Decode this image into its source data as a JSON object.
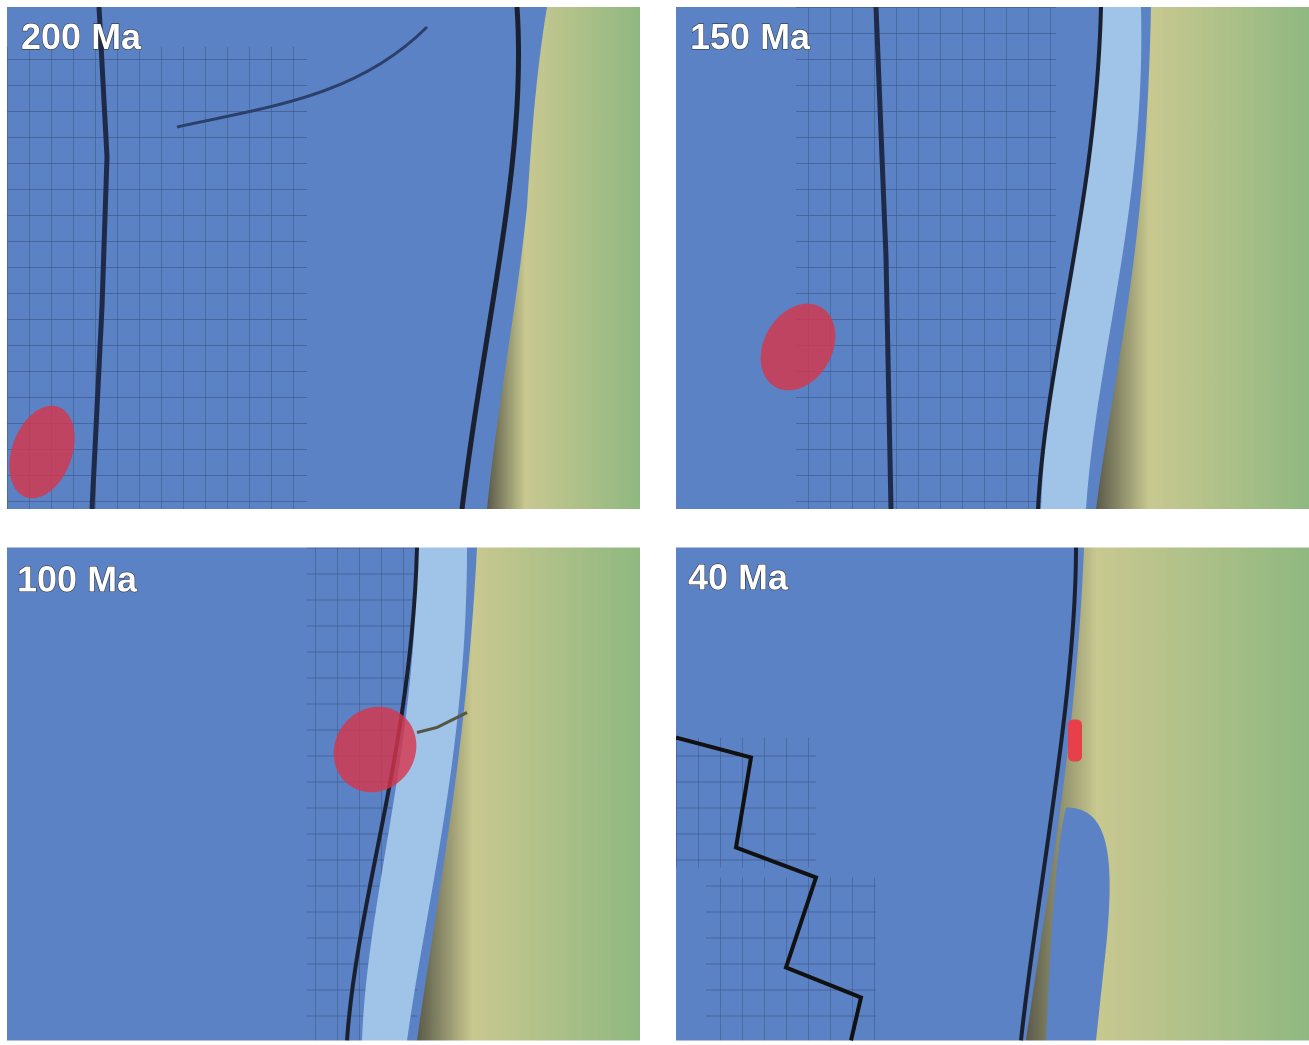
{
  "panels": [
    {
      "label": "200 Ma"
    },
    {
      "label": "150 Ma"
    },
    {
      "label": "100 Ma"
    },
    {
      "label": "40 Ma"
    }
  ]
}
